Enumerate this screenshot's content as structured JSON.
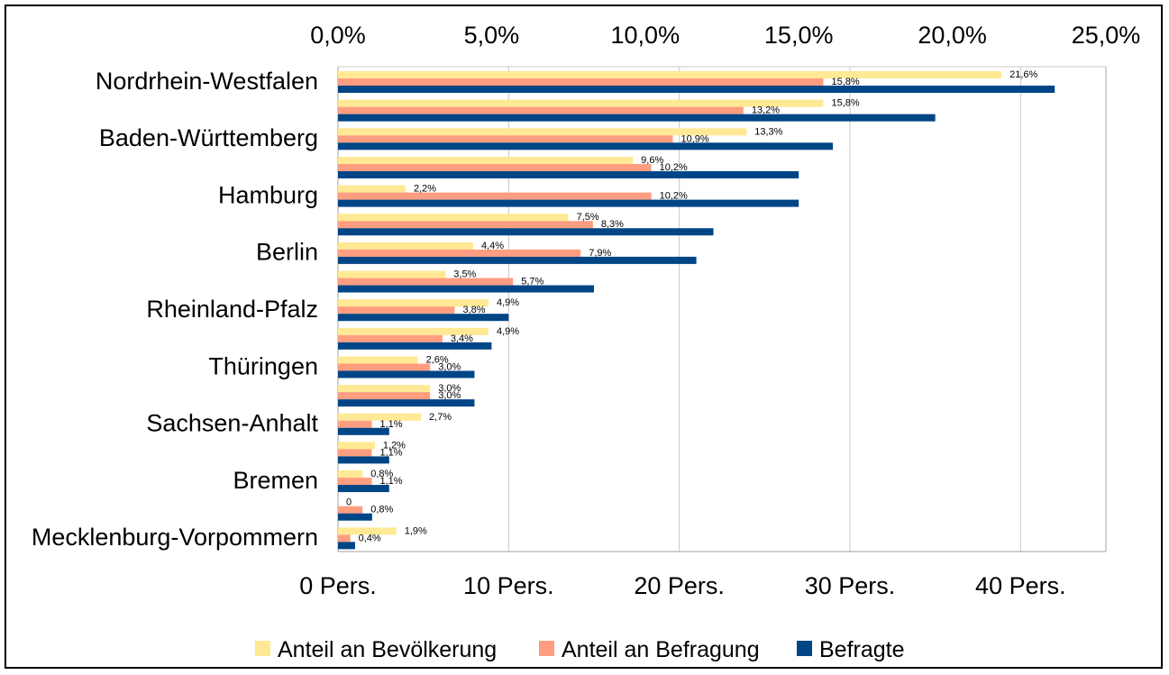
{
  "chart_data": {
    "type": "bar",
    "orientation": "horizontal",
    "grid": true,
    "legend_position": "bottom",
    "top_axis": {
      "range": [
        0,
        25
      ],
      "tick_values": [
        0,
        5,
        10,
        15,
        20,
        25
      ],
      "tick_labels": [
        "0,0%",
        "5,0%",
        "10,0%",
        "15,0%",
        "20,0%",
        "25,0%"
      ]
    },
    "bottom_axis": {
      "range": [
        0,
        45
      ],
      "tick_values": [
        0,
        10,
        20,
        30,
        40
      ],
      "tick_labels": [
        "0 Pers.",
        "10 Pers.",
        "20 Pers.",
        "30 Pers.",
        "40 Pers."
      ]
    },
    "category_labels": [
      "Nordrhein-Westfalen",
      "Baden-Württemberg",
      "Hamburg",
      "Berlin",
      "Rheinland-Pfalz",
      "Thüringen",
      "Sachsen-Anhalt",
      "Bremen",
      "Mecklenburg-Vorpommern"
    ],
    "row_count": 17,
    "label_rows": [
      0,
      2,
      4,
      6,
      8,
      10,
      12,
      14,
      16
    ],
    "series": [
      {
        "name": "Anteil an Bevölkerung",
        "color": "#ffe994",
        "axis": "top",
        "values": [
          21.6,
          15.8,
          13.3,
          9.6,
          2.2,
          7.5,
          4.4,
          3.5,
          4.9,
          4.9,
          2.6,
          3.0,
          2.7,
          1.2,
          0.8,
          0,
          1.9
        ],
        "labels": [
          "21,6%",
          "15,8%",
          "13,3%",
          "9,6%",
          "2,2%",
          "7,5%",
          "4,4%",
          "3,5%",
          "4,9%",
          "4,9%",
          "2,6%",
          "3,0%",
          "2,7%",
          "1,2%",
          "0,8%",
          "0",
          "1,9%"
        ]
      },
      {
        "name": "Anteil an Befragung",
        "color": "#ff9d80",
        "axis": "top",
        "values": [
          15.8,
          13.2,
          10.9,
          10.2,
          10.2,
          8.3,
          7.9,
          5.7,
          3.8,
          3.4,
          3.0,
          3.0,
          1.1,
          1.1,
          1.1,
          0.8,
          0.4
        ],
        "labels": [
          "15,8%",
          "13,2%",
          "10,9%",
          "10,2%",
          "10,2%",
          "8,3%",
          "7,9%",
          "5,7%",
          "3,8%",
          "3,4%",
          "3,0%",
          "3,0%",
          "1,1%",
          "1,1%",
          "1,1%",
          "0,8%",
          "0,4%"
        ]
      },
      {
        "name": "Befragte",
        "color": "#004586",
        "axis": "bottom",
        "values": [
          42,
          35,
          29,
          27,
          27,
          22,
          21,
          15,
          10,
          9,
          8,
          8,
          3,
          3,
          3,
          2,
          1
        ]
      }
    ]
  }
}
